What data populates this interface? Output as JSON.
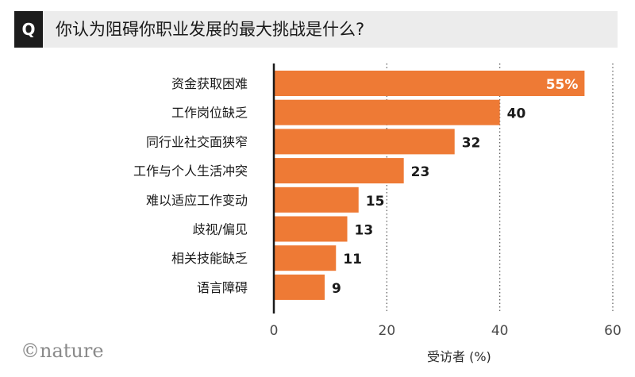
{
  "header": {
    "badge": "Q",
    "question": "你认为阻碍你职业发展的最大挑战是什么?"
  },
  "brand": "©nature",
  "colors": {
    "bar": "#ee7a35",
    "header_bg": "#ececec",
    "badge_bg": "#1c1c1c"
  },
  "chart_data": {
    "type": "bar",
    "orientation": "horizontal",
    "title": "你认为阻碍你职业发展的最大挑战是什么?",
    "xlabel": "受访者 (%)",
    "ylabel": "",
    "categories": [
      "资金获取困难",
      "工作岗位缺乏",
      "同行业社交面狭窄",
      "工作与个人生活冲突",
      "难以适应工作变动",
      "歧视/偏见",
      "相关技能缺乏",
      "语言障碍"
    ],
    "values": [
      55,
      40,
      32,
      23,
      15,
      13,
      11,
      9
    ],
    "value_labels": [
      "55%",
      "40",
      "32",
      "23",
      "15",
      "13",
      "11",
      "9"
    ],
    "xlim": [
      0,
      60
    ],
    "xticks": [
      0,
      20,
      40,
      60
    ],
    "grid": "vertical dotted",
    "legend": "none"
  }
}
